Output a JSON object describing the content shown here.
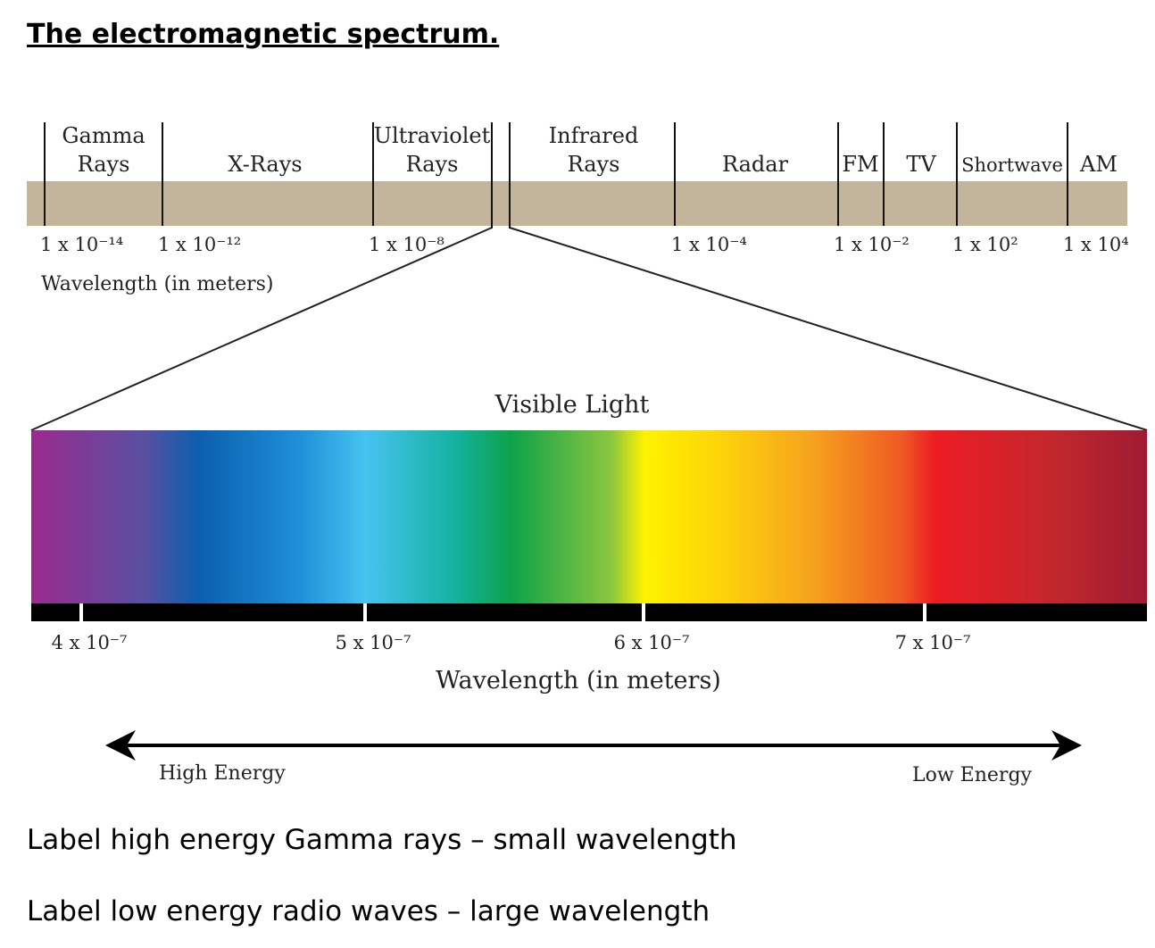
{
  "title": "The electromagnetic spectrum.",
  "bands": [
    "Gamma Rays",
    "X-Rays",
    "Ultraviolet Rays",
    "Infrared Rays",
    "Radar",
    "FM",
    "TV",
    "Shortwave",
    "AM"
  ],
  "band_lines": [
    [
      "Gamma",
      "Rays"
    ],
    [
      "X-Rays"
    ],
    [
      "Ultraviolet",
      "Rays"
    ],
    [
      "Infrared",
      "Rays"
    ],
    [
      "Radar"
    ],
    [
      "FM"
    ],
    [
      "TV"
    ],
    [
      "Shortwave"
    ],
    [
      "AM"
    ]
  ],
  "wavelengths": [
    "1 x 10⁻¹⁴",
    "1 x 10⁻¹²",
    "1 x 10⁻⁸",
    "1 x 10⁻⁴",
    "1 x 10⁻²",
    "1 x 10²",
    "1 x 10⁴"
  ],
  "wavelength_label": "Wavelength (in meters)",
  "visible": {
    "title": "Visible Light",
    "ticks": [
      "4 x 10⁻⁷",
      "5 x 10⁻⁷",
      "6 x 10⁻⁷",
      "7 x 10⁻⁷"
    ],
    "axis_label": "Wavelength (in meters)"
  },
  "energy": {
    "high": "High Energy",
    "low": "Low Energy"
  },
  "notes": [
    "Label high energy Gamma rays – small wavelength",
    "Label low energy radio waves – large wavelength"
  ]
}
